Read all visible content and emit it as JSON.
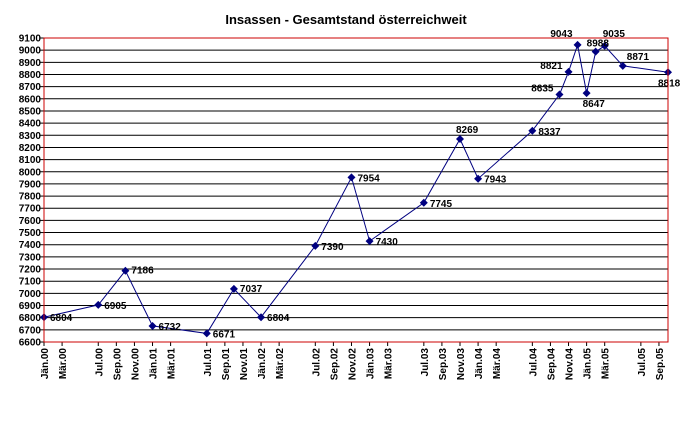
{
  "chart_data": {
    "type": "line",
    "title": "Insassen - Gesamtstand österreichweit",
    "xlabel": "",
    "ylabel": "",
    "ylim": [
      6600,
      9100
    ],
    "y_ticks": [
      6600,
      6700,
      6800,
      6900,
      7000,
      7100,
      7200,
      7300,
      7400,
      7500,
      7600,
      7700,
      7800,
      7900,
      8000,
      8100,
      8200,
      8300,
      8400,
      8500,
      8600,
      8700,
      8800,
      8900,
      9000,
      9100
    ],
    "grid": true,
    "legend": "none",
    "colors": {
      "line": "#000080",
      "marker": "#000080",
      "plot_border": "#cc0000",
      "grid": "#000000"
    },
    "x_tick_labels": [
      "Jän.00",
      "Mär.00",
      "Jul.00",
      "Sep.00",
      "Nov.00",
      "Jän.01",
      "Mär.01",
      "Jul.01",
      "Sep.01",
      "Nov.01",
      "Jän.02",
      "Mär.02",
      "Jul.02",
      "Sep.02",
      "Nov.02",
      "Jän.03",
      "Mär.03",
      "Jul.03",
      "Sep.03",
      "Nov.03",
      "Jän.04",
      "Mär.04",
      "Jul.04",
      "Sep.04",
      "Nov.04",
      "Jän.05",
      "Mär.05",
      "Jul.05",
      "Sep.05"
    ],
    "x_tick_months": [
      0,
      2,
      6,
      8,
      10,
      12,
      14,
      18,
      20,
      22,
      24,
      26,
      30,
      32,
      34,
      36,
      38,
      42,
      44,
      46,
      48,
      50,
      54,
      56,
      58,
      60,
      62,
      66,
      68
    ],
    "x_range_months": [
      0,
      69
    ],
    "points": [
      {
        "x": "Jän.00",
        "y": 6804
      },
      {
        "x": "Jul.00",
        "y": 6905
      },
      {
        "x": "Okt.00",
        "y": 7186
      },
      {
        "x": "Jän.01",
        "y": 6732
      },
      {
        "x": "Jul.01",
        "y": 6671
      },
      {
        "x": "Okt.01",
        "y": 7037
      },
      {
        "x": "Jän.02",
        "y": 6804
      },
      {
        "x": "Jul.02",
        "y": 7390
      },
      {
        "x": "Nov.02",
        "y": 7954
      },
      {
        "x": "Jän.03",
        "y": 7430
      },
      {
        "x": "Jul.03",
        "y": 7745
      },
      {
        "x": "Nov.03",
        "y": 8269
      },
      {
        "x": "Jän.04",
        "y": 7943
      },
      {
        "x": "Jul.04",
        "y": 8337
      },
      {
        "x": "Okt.04",
        "y": 8635
      },
      {
        "x": "Nov.04",
        "y": 8821
      },
      {
        "x": "Dez.04",
        "y": 9043
      },
      {
        "x": "Jän.05",
        "y": 8647
      },
      {
        "x": "Feb.05",
        "y": 8988
      },
      {
        "x": "Mär.05",
        "y": 9035
      },
      {
        "x": "Mai.05",
        "y": 8871
      },
      {
        "x": "Okt.05",
        "y": 8818
      }
    ],
    "x_months": [
      0,
      6,
      9,
      12,
      18,
      21,
      24,
      30,
      34,
      36,
      42,
      46,
      48,
      54,
      57,
      58,
      59,
      60,
      61,
      62,
      64,
      69
    ],
    "value_labels": [
      "6804",
      "6905",
      "7186",
      "6732",
      "6671",
      "7037",
      "6804",
      "7390",
      "7954",
      "7430",
      "7745",
      "8269",
      "7943",
      "8337",
      "8635",
      "8821",
      "9043",
      "8647",
      "8988",
      "9035",
      "8871",
      "8818"
    ]
  }
}
